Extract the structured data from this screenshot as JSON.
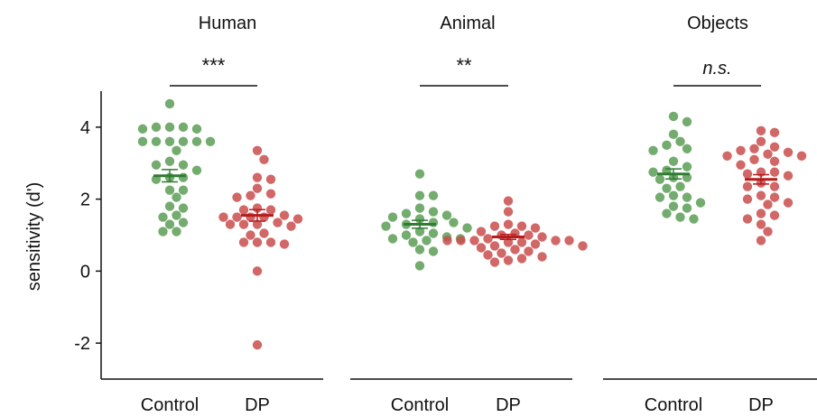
{
  "ylabel": "sensitivity (d')",
  "ylim": [
    -3,
    5
  ],
  "yticks": [
    -2,
    0,
    2,
    4
  ],
  "colors": {
    "control_dot": "#5a9e55",
    "control_mean": "#2e7d32",
    "dp_dot": "#c94c4c",
    "dp_mean": "#b71c1c",
    "axis": "#111111"
  },
  "chart_data": [
    {
      "type": "scatter",
      "title": "Human",
      "significance": "***",
      "significance_italic": false,
      "categories": [
        "Control",
        "DP"
      ],
      "series": [
        {
          "name": "Control",
          "mean": 2.65,
          "sem": 0.17,
          "values": [
            4.65,
            4.0,
            4.0,
            4.0,
            3.95,
            3.95,
            3.6,
            3.6,
            3.6,
            3.6,
            3.6,
            3.6,
            3.35,
            3.05,
            2.95,
            2.95,
            2.8,
            2.6,
            2.6,
            2.55,
            2.25,
            2.25,
            2.05,
            1.8,
            1.75,
            1.55,
            1.5,
            1.35,
            1.3,
            1.1,
            1.1
          ]
        },
        {
          "name": "DP",
          "mean": 1.55,
          "sem": 0.16,
          "values": [
            3.35,
            3.1,
            2.6,
            2.55,
            2.3,
            2.15,
            2.1,
            2.05,
            1.75,
            1.7,
            1.7,
            1.55,
            1.5,
            1.5,
            1.5,
            1.5,
            1.45,
            1.35,
            1.3,
            1.3,
            1.3,
            1.25,
            1.05,
            1.0,
            0.8,
            0.8,
            0.8,
            0.75,
            0.0,
            -2.05
          ]
        }
      ]
    },
    {
      "type": "scatter",
      "title": "Animal",
      "significance": "**",
      "significance_italic": false,
      "categories": [
        "Control",
        "DP"
      ],
      "series": [
        {
          "name": "Control",
          "mean": 1.3,
          "sem": 0.11,
          "values": [
            2.7,
            2.1,
            2.1,
            1.75,
            1.65,
            1.6,
            1.55,
            1.5,
            1.45,
            1.35,
            1.35,
            1.3,
            1.25,
            1.2,
            1.1,
            1.05,
            1.0,
            0.95,
            0.9,
            0.9,
            0.85,
            0.8,
            0.6,
            0.55,
            0.15
          ]
        },
        {
          "name": "DP",
          "mean": 0.95,
          "sem": 0.07,
          "values": [
            1.95,
            1.65,
            1.3,
            1.25,
            1.25,
            1.2,
            1.1,
            1.05,
            1.0,
            1.0,
            0.95,
            0.9,
            0.85,
            0.85,
            0.85,
            0.85,
            0.85,
            0.8,
            0.8,
            0.75,
            0.7,
            0.7,
            0.65,
            0.6,
            0.55,
            0.5,
            0.45,
            0.4,
            0.35,
            0.3,
            0.25
          ]
        }
      ]
    },
    {
      "type": "scatter",
      "title": "Objects",
      "significance": "n.s.",
      "significance_italic": true,
      "categories": [
        "Control",
        "DP"
      ],
      "series": [
        {
          "name": "Control",
          "mean": 2.7,
          "sem": 0.14,
          "values": [
            4.3,
            4.15,
            3.8,
            3.6,
            3.5,
            3.4,
            3.35,
            3.05,
            2.9,
            2.8,
            2.75,
            2.6,
            2.6,
            2.55,
            2.35,
            2.3,
            2.1,
            2.05,
            2.05,
            1.9,
            1.8,
            1.75,
            1.6,
            1.5,
            1.45
          ]
        },
        {
          "name": "DP",
          "mean": 2.55,
          "sem": 0.13,
          "values": [
            3.9,
            3.85,
            3.6,
            3.45,
            3.4,
            3.35,
            3.3,
            3.25,
            3.2,
            3.2,
            3.1,
            3.05,
            2.95,
            2.75,
            2.75,
            2.7,
            2.65,
            2.45,
            2.35,
            2.35,
            2.1,
            2.05,
            2.0,
            1.9,
            1.85,
            1.6,
            1.55,
            1.45,
            1.3,
            1.1,
            0.85
          ]
        }
      ]
    }
  ]
}
